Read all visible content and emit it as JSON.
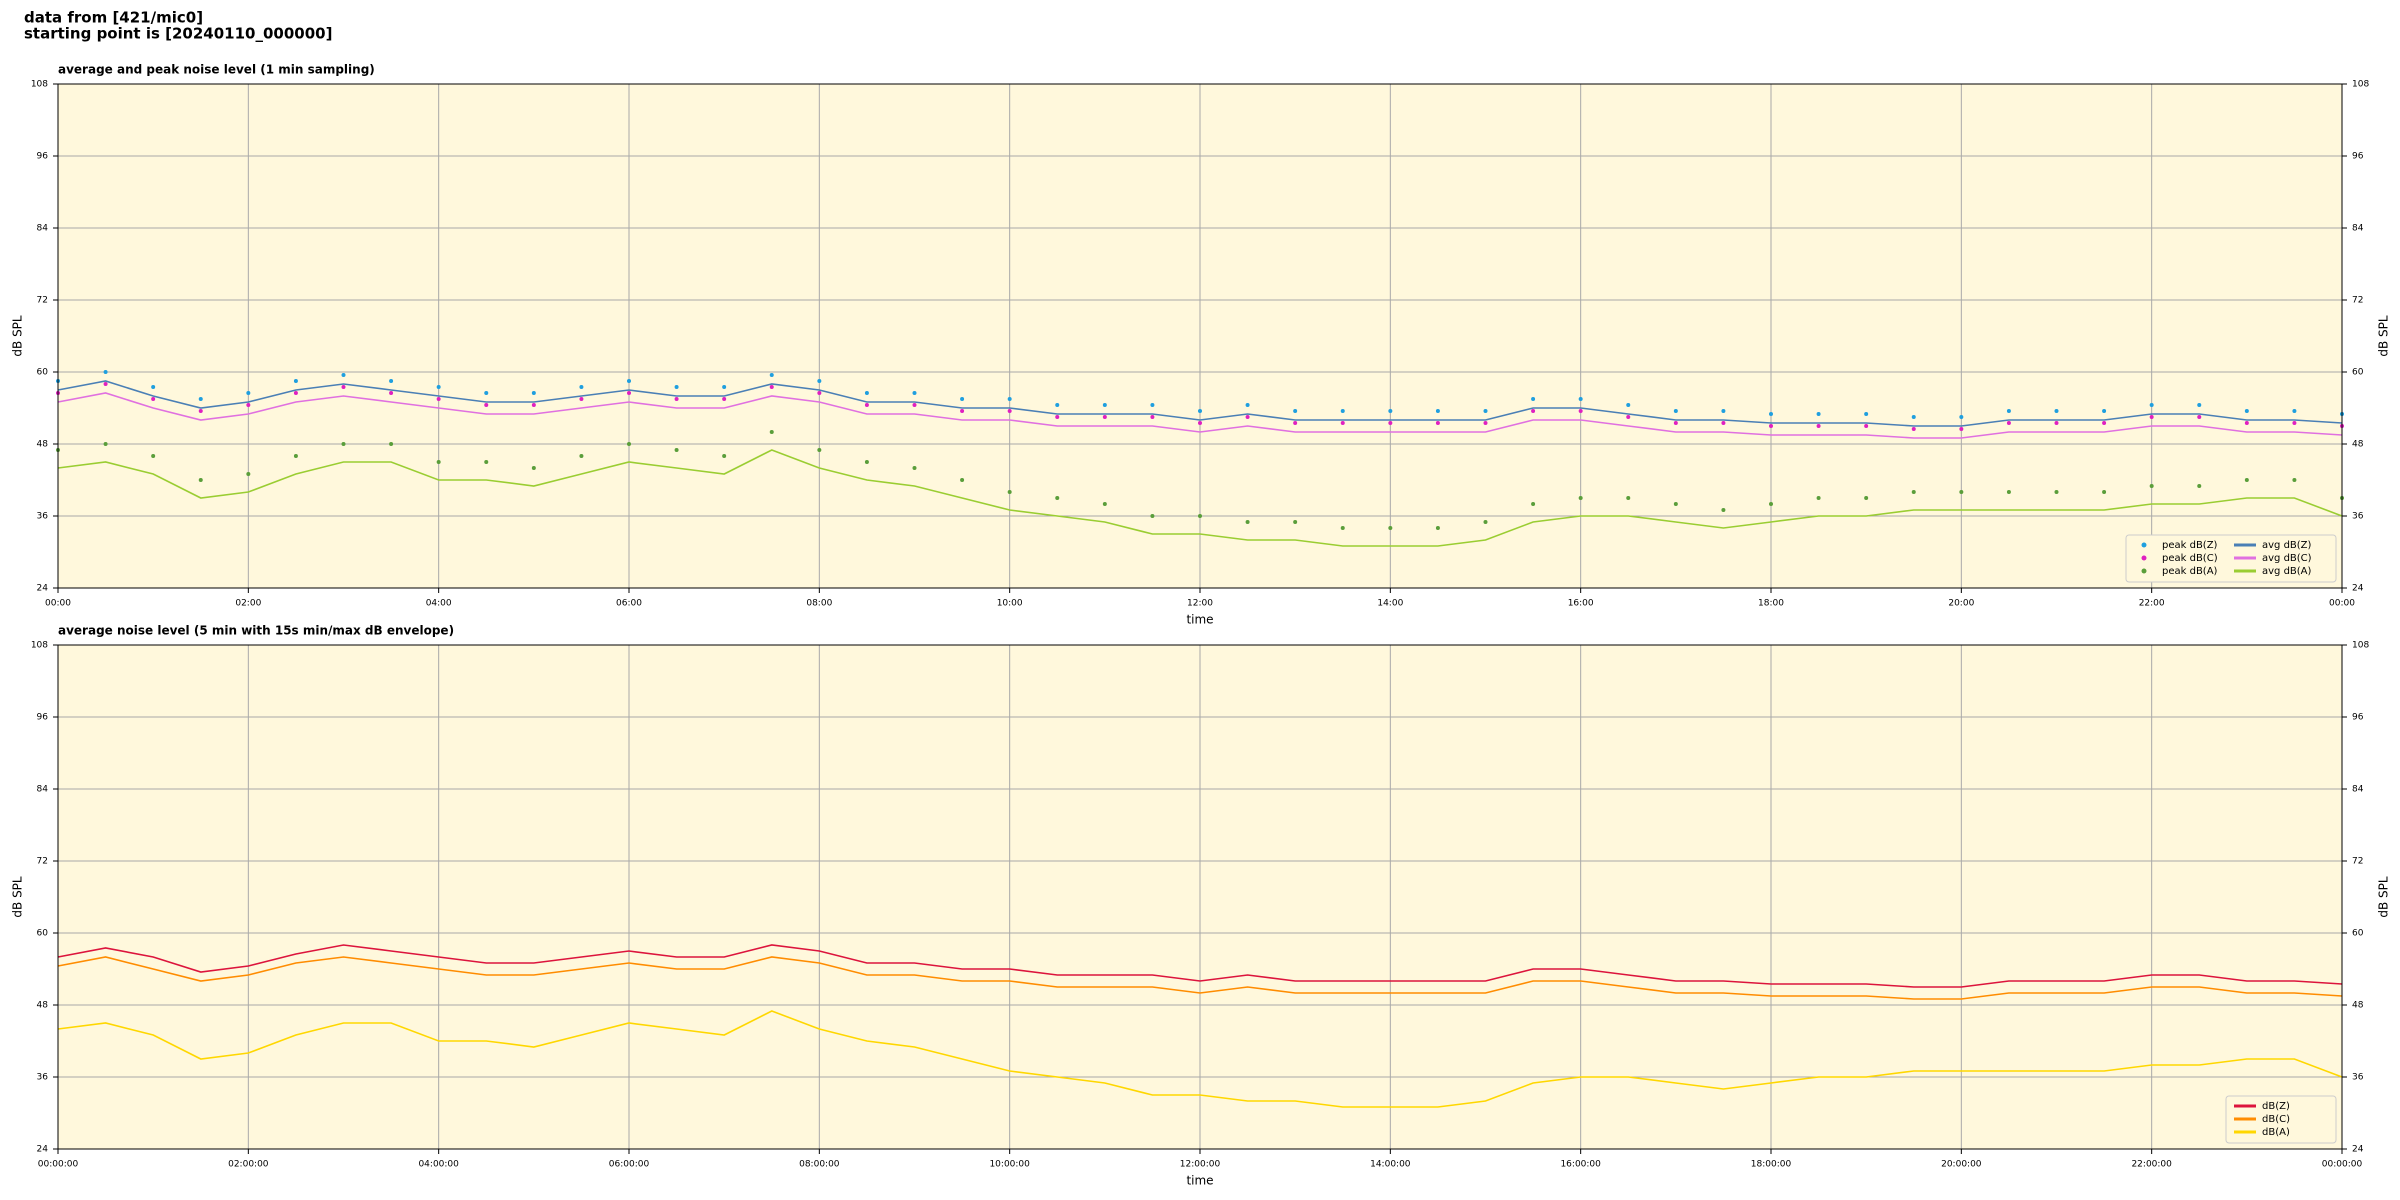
{
  "header": {
    "lines": [
      "data from [421/mic0]",
      "starting point is [20240110_000000]"
    ]
  },
  "chart_data": [
    {
      "type": "line",
      "title": "average and peak noise level (1 min sampling)",
      "x_label": "time",
      "y_label": "dB SPL",
      "background": "#fff8dc",
      "grid": true,
      "legend": "lower right",
      "legend_columns": 2,
      "xlim": [
        0,
        24
      ],
      "xticks": [
        {
          "value": 0,
          "label": "00:00"
        },
        {
          "value": 2,
          "label": "02:00"
        },
        {
          "value": 4,
          "label": "04:00"
        },
        {
          "value": 6,
          "label": "06:00"
        },
        {
          "value": 8,
          "label": "08:00"
        },
        {
          "value": 10,
          "label": "10:00"
        },
        {
          "value": 12,
          "label": "12:00"
        },
        {
          "value": 14,
          "label": "14:00"
        },
        {
          "value": 16,
          "label": "16:00"
        },
        {
          "value": 18,
          "label": "18:00"
        },
        {
          "value": 20,
          "label": "20:00"
        },
        {
          "value": 22,
          "label": "22:00"
        },
        {
          "value": 24,
          "label": "00:00"
        }
      ],
      "ylim": [
        24,
        108
      ],
      "yticks": [
        24,
        36,
        48,
        60,
        72,
        84,
        96,
        108
      ],
      "x": [
        0,
        0.5,
        1,
        1.5,
        2,
        2.5,
        3,
        3.5,
        4,
        4.5,
        5,
        5.5,
        6,
        6.5,
        7,
        7.5,
        8,
        8.5,
        9,
        9.5,
        10,
        10.5,
        11,
        11.5,
        12,
        12.5,
        13,
        13.5,
        14,
        14.5,
        15,
        15.5,
        16,
        16.5,
        17,
        17.5,
        18,
        18.5,
        19,
        19.5,
        20,
        20.5,
        21,
        21.5,
        22,
        22.5,
        23,
        23.5,
        24
      ],
      "series": [
        {
          "name": "peak dB(Z)",
          "kind": "scatter",
          "color": "#1f9fdf",
          "values": [
            58.5,
            60,
            57.5,
            55.5,
            56.5,
            58.5,
            59.5,
            58.5,
            57.5,
            56.5,
            56.5,
            57.5,
            58.5,
            57.5,
            57.5,
            59.5,
            58.5,
            56.5,
            56.5,
            55.5,
            55.5,
            54.5,
            54.5,
            54.5,
            53.5,
            54.5,
            53.5,
            53.5,
            53.5,
            53.5,
            53.5,
            55.5,
            55.5,
            54.5,
            53.5,
            53.5,
            53,
            53,
            53,
            52.5,
            52.5,
            53.5,
            53.5,
            53.5,
            54.5,
            54.5,
            53.5,
            53.5,
            53
          ]
        },
        {
          "name": "peak dB(C)",
          "kind": "scatter",
          "color": "#e020c0",
          "values": [
            56.5,
            58,
            55.5,
            53.5,
            54.5,
            56.5,
            57.5,
            56.5,
            55.5,
            54.5,
            54.5,
            55.5,
            56.5,
            55.5,
            55.5,
            57.5,
            56.5,
            54.5,
            54.5,
            53.5,
            53.5,
            52.5,
            52.5,
            52.5,
            51.5,
            52.5,
            51.5,
            51.5,
            51.5,
            51.5,
            51.5,
            53.5,
            53.5,
            52.5,
            51.5,
            51.5,
            51,
            51,
            51,
            50.5,
            50.5,
            51.5,
            51.5,
            51.5,
            52.5,
            52.5,
            51.5,
            51.5,
            51
          ]
        },
        {
          "name": "peak dB(A)",
          "kind": "scatter",
          "color": "#5a9e3a",
          "values": [
            47,
            48,
            46,
            42,
            43,
            46,
            48,
            48,
            45,
            45,
            44,
            46,
            48,
            47,
            46,
            50,
            47,
            45,
            44,
            42,
            40,
            39,
            38,
            36,
            36,
            35,
            35,
            34,
            34,
            34,
            35,
            38,
            39,
            39,
            38,
            37,
            38,
            39,
            39,
            40,
            40,
            40,
            40,
            40,
            41,
            41,
            42,
            42,
            39
          ]
        },
        {
          "name": "avg dB(Z)",
          "kind": "line",
          "color": "#4a7fb5",
          "values": [
            57,
            58.5,
            56,
            54,
            55,
            57,
            58,
            57,
            56,
            55,
            55,
            56,
            57,
            56,
            56,
            58,
            57,
            55,
            55,
            54,
            54,
            53,
            53,
            53,
            52,
            53,
            52,
            52,
            52,
            52,
            52,
            54,
            54,
            53,
            52,
            52,
            51.5,
            51.5,
            51.5,
            51,
            51,
            52,
            52,
            52,
            53,
            53,
            52,
            52,
            51.5
          ]
        },
        {
          "name": "avg dB(C)",
          "kind": "line",
          "color": "#e070e0",
          "values": [
            55,
            56.5,
            54,
            52,
            53,
            55,
            56,
            55,
            54,
            53,
            53,
            54,
            55,
            54,
            54,
            56,
            55,
            53,
            53,
            52,
            52,
            51,
            51,
            51,
            50,
            51,
            50,
            50,
            50,
            50,
            50,
            52,
            52,
            51,
            50,
            50,
            49.5,
            49.5,
            49.5,
            49,
            49,
            50,
            50,
            50,
            51,
            51,
            50,
            50,
            49.5
          ]
        },
        {
          "name": "avg dB(A)",
          "kind": "line",
          "color": "#9acd32",
          "values": [
            44,
            45,
            43,
            39,
            40,
            43,
            45,
            45,
            42,
            42,
            41,
            43,
            45,
            44,
            43,
            47,
            44,
            42,
            41,
            39,
            37,
            36,
            35,
            33,
            33,
            32,
            32,
            31,
            31,
            31,
            32,
            35,
            36,
            36,
            35,
            34,
            35,
            36,
            36,
            37,
            37,
            37,
            37,
            37,
            38,
            38,
            39,
            39,
            36
          ]
        }
      ]
    },
    {
      "type": "line",
      "title": "average noise level (5 min with 15s min/max dB envelope)",
      "x_label": "time",
      "y_label": "dB SPL",
      "background": "#fff8dc",
      "grid": true,
      "legend": "lower right",
      "legend_columns": 1,
      "xlim": [
        0,
        24
      ],
      "xticks": [
        {
          "value": 0,
          "label": "00:00:00"
        },
        {
          "value": 2,
          "label": "02:00:00"
        },
        {
          "value": 4,
          "label": "04:00:00"
        },
        {
          "value": 6,
          "label": "06:00:00"
        },
        {
          "value": 8,
          "label": "08:00:00"
        },
        {
          "value": 10,
          "label": "10:00:00"
        },
        {
          "value": 12,
          "label": "12:00:00"
        },
        {
          "value": 14,
          "label": "14:00:00"
        },
        {
          "value": 16,
          "label": "16:00:00"
        },
        {
          "value": 18,
          "label": "18:00:00"
        },
        {
          "value": 20,
          "label": "20:00:00"
        },
        {
          "value": 22,
          "label": "22:00:00"
        },
        {
          "value": 24,
          "label": "00:00:00"
        }
      ],
      "ylim": [
        24,
        108
      ],
      "yticks": [
        24,
        36,
        48,
        60,
        72,
        84,
        96,
        108
      ],
      "x": [
        0,
        0.5,
        1,
        1.5,
        2,
        2.5,
        3,
        3.5,
        4,
        4.5,
        5,
        5.5,
        6,
        6.5,
        7,
        7.5,
        8,
        8.5,
        9,
        9.5,
        10,
        10.5,
        11,
        11.5,
        12,
        12.5,
        13,
        13.5,
        14,
        14.5,
        15,
        15.5,
        16,
        16.5,
        17,
        17.5,
        18,
        18.5,
        19,
        19.5,
        20,
        20.5,
        21,
        21.5,
        22,
        22.5,
        23,
        23.5,
        24
      ],
      "series": [
        {
          "name": "dB(Z)",
          "kind": "line",
          "color": "#dc143c",
          "values": [
            56,
            57.5,
            56,
            53.5,
            54.5,
            56.5,
            58,
            57,
            56,
            55,
            55,
            56,
            57,
            56,
            56,
            58,
            57,
            55,
            55,
            54,
            54,
            53,
            53,
            53,
            52,
            53,
            52,
            52,
            52,
            52,
            52,
            54,
            54,
            53,
            52,
            52,
            51.5,
            51.5,
            51.5,
            51,
            51,
            52,
            52,
            52,
            53,
            53,
            52,
            52,
            51.5
          ]
        },
        {
          "name": "dB(C)",
          "kind": "line",
          "color": "#ff8c00",
          "values": [
            54.5,
            56,
            54,
            52,
            53,
            55,
            56,
            55,
            54,
            53,
            53,
            54,
            55,
            54,
            54,
            56,
            55,
            53,
            53,
            52,
            52,
            51,
            51,
            51,
            50,
            51,
            50,
            50,
            50,
            50,
            50,
            52,
            52,
            51,
            50,
            50,
            49.5,
            49.5,
            49.5,
            49,
            49,
            50,
            50,
            50,
            51,
            51,
            50,
            50,
            49.5
          ]
        },
        {
          "name": "dB(A)",
          "kind": "line",
          "color": "#ffd700",
          "values": [
            44,
            45,
            43,
            39,
            40,
            43,
            45,
            45,
            42,
            42,
            41,
            43,
            45,
            44,
            43,
            47,
            44,
            42,
            41,
            39,
            37,
            36,
            35,
            33,
            33,
            32,
            32,
            31,
            31,
            31,
            32,
            35,
            36,
            36,
            35,
            34,
            35,
            36,
            36,
            37,
            37,
            37,
            37,
            37,
            38,
            38,
            39,
            39,
            36
          ]
        }
      ]
    }
  ]
}
